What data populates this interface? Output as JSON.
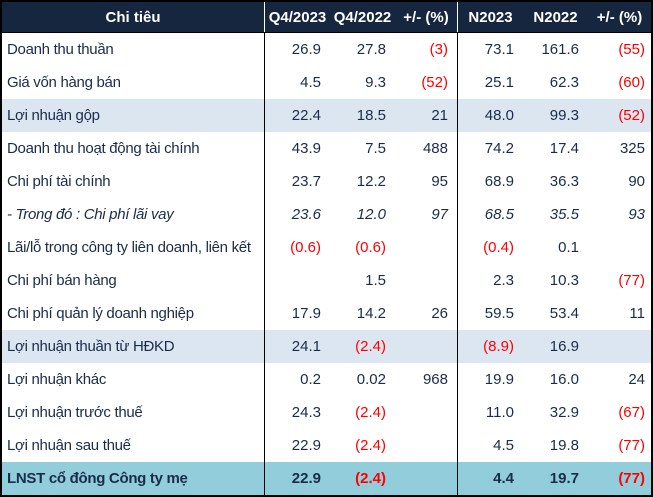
{
  "colors": {
    "header_bg": "#16263E",
    "header_text": "#FFFFFF",
    "body_text": "#1B2B4A",
    "negative": "#FF0000",
    "hl_blue": "#DCE6F1",
    "hl_cyan": "#92CDDC",
    "border": "#000000"
  },
  "table": {
    "columns": [
      "Chi tiêu",
      "Q4/2023",
      "Q4/2022",
      "+/- (%)",
      "N2023",
      "N2022",
      "+/- (%)"
    ],
    "rows": [
      {
        "label": "Doanh thu thuần",
        "values": [
          "26.9",
          "27.8",
          "(3)",
          "73.1",
          "161.6",
          "(55)"
        ],
        "highlight": null
      },
      {
        "label": "Giá vốn hàng bán",
        "values": [
          "4.5",
          "9.3",
          "(52)",
          "25.1",
          "62.3",
          "(60)"
        ],
        "highlight": null
      },
      {
        "label": "Lợi nhuận gộp",
        "values": [
          "22.4",
          "18.5",
          "21",
          "48.0",
          "99.3",
          "(52)"
        ],
        "highlight": "blue"
      },
      {
        "label": "Doanh thu hoạt động tài chính",
        "values": [
          "43.9",
          "7.5",
          "488",
          "74.2",
          "17.4",
          "325"
        ],
        "highlight": null
      },
      {
        "label": "Chi phí tài chính",
        "values": [
          "23.7",
          "12.2",
          "95",
          "68.9",
          "36.3",
          "90"
        ],
        "highlight": null
      },
      {
        "label": "- Trong đó : Chi phí lãi vay",
        "values": [
          "23.6",
          "12.0",
          "97",
          "68.5",
          "35.5",
          "93"
        ],
        "highlight": null,
        "italic": true
      },
      {
        "label": "Lãi/lỗ trong công ty liên doanh, liên kết",
        "values": [
          "(0.6)",
          "(0.6)",
          "",
          "(0.4)",
          "0.1",
          ""
        ],
        "highlight": null
      },
      {
        "label": "Chi phí bán hàng",
        "values": [
          "",
          "1.5",
          "",
          "2.3",
          "10.3",
          "(77)"
        ],
        "highlight": null
      },
      {
        "label": "Chi phí quản lý doanh nghiệp",
        "values": [
          "17.9",
          "14.2",
          "26",
          "59.5",
          "53.4",
          "11"
        ],
        "highlight": null
      },
      {
        "label": "Lợi nhuận thuần từ HĐKD",
        "values": [
          "24.1",
          "(2.4)",
          "",
          "(8.9)",
          "16.9",
          ""
        ],
        "highlight": "blue"
      },
      {
        "label": "Lợi nhuận khác",
        "values": [
          "0.2",
          "0.02",
          "968",
          "19.9",
          "16.0",
          "24"
        ],
        "highlight": null
      },
      {
        "label": "Lợi nhuận trước thuế",
        "values": [
          "24.3",
          "(2.4)",
          "",
          "11.0",
          "32.9",
          "(67)"
        ],
        "highlight": null
      },
      {
        "label": "Lợi nhuận sau thuế",
        "values": [
          "22.9",
          "(2.4)",
          "",
          "4.5",
          "19.8",
          "(77)"
        ],
        "highlight": null
      },
      {
        "label": "LNST cổ đông Công ty mẹ",
        "values": [
          "22.9",
          "(2.4)",
          "",
          "4.4",
          "19.7",
          "(77)"
        ],
        "highlight": "cyan",
        "bold": true
      }
    ]
  },
  "chart_data": {
    "type": "table",
    "title": "",
    "columns": [
      "Chi tiêu",
      "Q4/2023",
      "Q4/2022",
      "+/- (%)",
      "N2023",
      "N2022",
      "+/- (%)"
    ],
    "rows": [
      [
        "Doanh thu thuần",
        26.9,
        27.8,
        -3,
        73.1,
        161.6,
        -55
      ],
      [
        "Giá vốn hàng bán",
        4.5,
        9.3,
        -52,
        25.1,
        62.3,
        -60
      ],
      [
        "Lợi nhuận gộp",
        22.4,
        18.5,
        21,
        48.0,
        99.3,
        -52
      ],
      [
        "Doanh thu hoạt động tài chính",
        43.9,
        7.5,
        488,
        74.2,
        17.4,
        325
      ],
      [
        "Chi phí tài chính",
        23.7,
        12.2,
        95,
        68.9,
        36.3,
        90
      ],
      [
        "- Trong đó : Chi phí lãi vay",
        23.6,
        12.0,
        97,
        68.5,
        35.5,
        93
      ],
      [
        "Lãi/lỗ trong công ty liên doanh, liên kết",
        -0.6,
        -0.6,
        null,
        -0.4,
        0.1,
        null
      ],
      [
        "Chi phí bán hàng",
        null,
        1.5,
        null,
        2.3,
        10.3,
        -77
      ],
      [
        "Chi phí quản lý doanh nghiệp",
        17.9,
        14.2,
        26,
        59.5,
        53.4,
        11
      ],
      [
        "Lợi nhuận thuần từ HĐKD",
        24.1,
        -2.4,
        null,
        -8.9,
        16.9,
        null
      ],
      [
        "Lợi nhuận khác",
        0.2,
        0.02,
        968,
        19.9,
        16.0,
        24
      ],
      [
        "Lợi nhuận trước thuế",
        24.3,
        -2.4,
        null,
        11.0,
        32.9,
        -67
      ],
      [
        "Lợi nhuận sau thuế",
        22.9,
        -2.4,
        null,
        4.5,
        19.8,
        -77
      ],
      [
        "LNST cổ đông Công ty mẹ",
        22.9,
        -2.4,
        null,
        4.4,
        19.7,
        -77
      ]
    ]
  }
}
